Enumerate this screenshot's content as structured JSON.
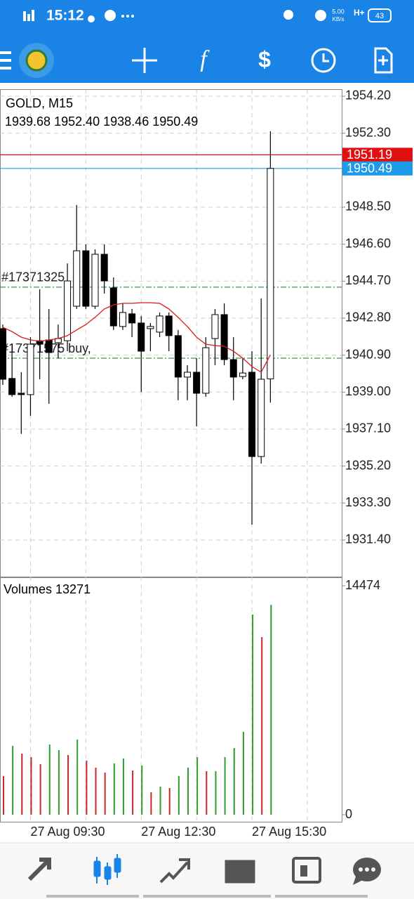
{
  "status_bar": {
    "time": "15:12",
    "speed": "5.00",
    "speed_unit": "KB/s",
    "network": "H+",
    "battery": "43"
  },
  "chart_data": [
    {
      "type": "candlestick",
      "title": "GOLD, M15",
      "subtitle": "1939.68 1952.40 1938.46 1950.49",
      "categories": [
        null,
        null,
        null,
        "27 Aug 09:30",
        null,
        null,
        null,
        null,
        null,
        null,
        null,
        null,
        null,
        null,
        null,
        "27 Aug 12:30",
        null,
        null,
        null,
        null,
        null,
        null,
        null,
        null,
        null,
        null,
        null,
        "27 Aug 15:30",
        null,
        null
      ],
      "open": [
        1942.26,
        1939.7,
        1938.94,
        1938.87,
        1941.64,
        1941.68,
        1941.54,
        1941.64,
        1943.41,
        1946.26,
        1943.41,
        1946.08,
        1944.35,
        1942.37,
        1943.02,
        1942.55,
        1942.26,
        1942.08,
        1942.91,
        1941.9,
        1939.77,
        1940.02,
        1938.94,
        1941.75,
        1942.98,
        1940.67,
        1939.8,
        1940.02,
        1935.69,
        1939.68
      ],
      "high": [
        1942.47,
        1941.46,
        1940.02,
        1941.82,
        1944.28,
        1943.27,
        1942.47,
        1945.61,
        1948.61,
        1946.59,
        1946.33,
        1946.59,
        1944.89,
        1943.56,
        1943.27,
        1942.91,
        1942.55,
        1943.09,
        1943.09,
        1942.19,
        1940.38,
        1940.74,
        1941.82,
        1943.27,
        1943.56,
        1941.82,
        1940.74,
        1941.1,
        1943.81,
        1952.4
      ],
      "low": [
        1939.37,
        1938.76,
        1936.85,
        1937.78,
        1939.66,
        1938.4,
        1940.74,
        1941.1,
        1943.27,
        1943.27,
        1943.27,
        1944.06,
        1942.19,
        1942.19,
        1941.82,
        1939.01,
        1941.1,
        1941.82,
        1941.1,
        1938.58,
        1938.58,
        1937.24,
        1938.76,
        1940.38,
        1940.38,
        1938.58,
        1939.66,
        1932.19,
        1935.33,
        1938.46
      ],
      "close": [
        1939.66,
        1938.87,
        1938.87,
        1941.46,
        1941.46,
        1941.03,
        1941.75,
        1944.71,
        1946.26,
        1943.41,
        1946.08,
        1944.71,
        1942.4,
        1943.09,
        1942.55,
        1941.1,
        1942.37,
        1942.91,
        1941.9,
        1939.77,
        1940.02,
        1938.94,
        1941.28,
        1942.98,
        1940.67,
        1939.77,
        1939.98,
        1935.69,
        1939.66,
        1950.49
      ],
      "up_color": "#ffffff",
      "down_color": "#000000",
      "moving_average": {
        "color": "#d81b1b",
        "values": [
          1942.33,
          1942.11,
          1941.82,
          1941.68,
          1941.61,
          1941.68,
          1941.75,
          1941.9,
          1942.19,
          1942.47,
          1942.84,
          1943.27,
          1943.48,
          1943.56,
          1943.56,
          1943.59,
          1943.59,
          1943.56,
          1943.27,
          1942.84,
          1942.37,
          1941.82,
          1941.46,
          1941.39,
          1941.35,
          1941.1,
          1940.74,
          1940.31,
          1940.02,
          1940.92
        ]
      },
      "ylim": [
        1929.52,
        1954.56
      ],
      "yticks": [
        {
          "value": 1954.2,
          "label": "1954.20"
        },
        {
          "value": 1952.3,
          "label": "1952.30"
        },
        {
          "value": 1948.5,
          "label": "1948.50"
        },
        {
          "value": 1946.6,
          "label": "1946.60"
        },
        {
          "value": 1944.7,
          "label": "1944.70"
        },
        {
          "value": 1942.8,
          "label": "1942.80"
        },
        {
          "value": 1940.9,
          "label": "1940.90"
        },
        {
          "value": 1939,
          "label": "1939.00"
        },
        {
          "value": 1937.1,
          "label": "1937.10"
        },
        {
          "value": 1935.2,
          "label": "1935.20"
        },
        {
          "value": 1933.3,
          "label": "1933.30"
        },
        {
          "value": 1931.4,
          "label": "1931.40"
        }
      ],
      "grid": true,
      "price_lines": [
        {
          "value": 1951.19,
          "label": "1951.19",
          "color": "#e01010"
        },
        {
          "value": 1950.49,
          "label": "1950.49",
          "color": "#1e9be8"
        }
      ],
      "orders": [
        {
          "value": 1944.39,
          "label": "#17371325",
          "color": "#1a7a1a"
        },
        {
          "value": 1940.74,
          "label": "#17371575 buy,",
          "color": "#1a7a1a"
        }
      ]
    },
    {
      "type": "volume",
      "title": "Volumes 13271",
      "values": [
        2442,
        4351,
        3863,
        3641,
        3197,
        4440,
        4085,
        3774,
        4751,
        3419,
        2975,
        2664,
        3241,
        3552,
        2797,
        3108,
        1421,
        1776,
        1687,
        2442,
        2975,
        3641,
        2753,
        2753,
        3641,
        4218,
        5239,
        12654,
        11233,
        13271
      ],
      "colors": [
        "#c62828",
        "#2e9e2e",
        "#c62828",
        "#c62828",
        "#c62828",
        "#2e9e2e",
        "#2e9e2e",
        "#c62828",
        "#2e9e2e",
        "#c62828",
        "#c62828",
        "#c62828",
        "#2e9e2e",
        "#2e9e2e",
        "#c62828",
        "#2e9e2e",
        "#c62828",
        "#2e9e2e",
        "#c62828",
        "#2e9e2e",
        "#2e9e2e",
        "#2e9e2e",
        "#c62828",
        "#2e9e2e",
        "#2e9e2e",
        "#2e9e2e",
        "#2e9e2e",
        "#2e9e2e",
        "#c62828",
        "#2e9e2e"
      ],
      "ylim": [
        0,
        14474
      ],
      "yticks": [
        14474,
        0
      ]
    }
  ]
}
